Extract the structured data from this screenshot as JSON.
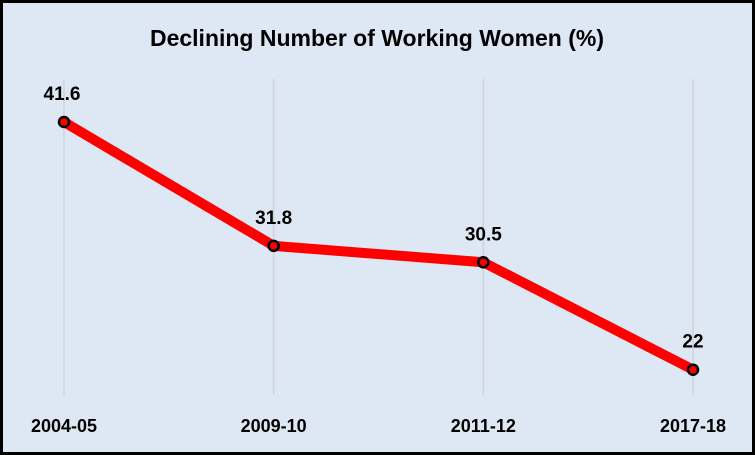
{
  "chart_data": {
    "type": "line",
    "title": "Declining Number of Working Women (%)",
    "categories": [
      "2004-05",
      "2009-10",
      "2011-12",
      "2017-18"
    ],
    "series": [
      {
        "name": "Working Women",
        "color": "#ff0000",
        "values": [
          41.6,
          31.8,
          30.5,
          22
        ]
      }
    ],
    "ylim": [
      20,
      45
    ],
    "grid": true
  }
}
